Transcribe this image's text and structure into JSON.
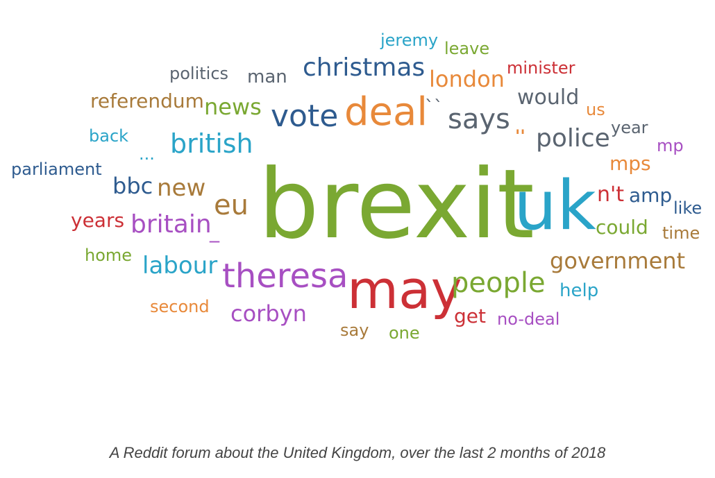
{
  "caption": "A Reddit forum about the United Kingdom, over the last 2 months of 2018",
  "word_cloud": {
    "words": [
      {
        "text": "brexit",
        "color": "#7aa832"
      },
      {
        "text": "uk",
        "color": "#2aa4c8"
      },
      {
        "text": "may",
        "color": "#cc3036"
      },
      {
        "text": "deal",
        "color": "#e8893a"
      },
      {
        "text": "theresa",
        "color": "#a74fc2"
      },
      {
        "text": "vote",
        "color": "#2e5b8f"
      },
      {
        "text": "people",
        "color": "#7aa832"
      },
      {
        "text": "christmas",
        "color": "#2e5b8f"
      },
      {
        "text": "says",
        "color": "#5a6470"
      },
      {
        "text": "british",
        "color": "#2aa4c8"
      },
      {
        "text": "police",
        "color": "#5a6470"
      },
      {
        "text": "eu",
        "color": "#a87a3a"
      },
      {
        "text": "government",
        "color": "#a87a3a"
      },
      {
        "text": "britain",
        "color": "#a74fc2"
      },
      {
        "text": "corbyn",
        "color": "#a74fc2"
      },
      {
        "text": "labour",
        "color": "#2aa4c8"
      },
      {
        "text": "london",
        "color": "#e8893a"
      },
      {
        "text": "new",
        "color": "#a87a3a"
      },
      {
        "text": "bbc",
        "color": "#2e5b8f"
      },
      {
        "text": "news",
        "color": "#7aa832"
      },
      {
        "text": "would",
        "color": "#5a6470"
      },
      {
        "text": "referendum",
        "color": "#a87a3a"
      },
      {
        "text": "n't",
        "color": "#cc3036"
      },
      {
        "text": "amp",
        "color": "#2e5b8f"
      },
      {
        "text": "could",
        "color": "#7aa832"
      },
      {
        "text": "mps",
        "color": "#e8893a"
      },
      {
        "text": "years",
        "color": "#cc3036"
      },
      {
        "text": "get",
        "color": "#cc3036"
      },
      {
        "text": "no-deal",
        "color": "#a74fc2"
      },
      {
        "text": "help",
        "color": "#2aa4c8"
      },
      {
        "text": "second",
        "color": "#e8893a"
      },
      {
        "text": "one",
        "color": "#7aa832"
      },
      {
        "text": "say",
        "color": "#a87a3a"
      },
      {
        "text": "home",
        "color": "#7aa832"
      },
      {
        "text": "parliament",
        "color": "#2e5b8f"
      },
      {
        "text": "back",
        "color": "#2aa4c8"
      },
      {
        "text": "politics",
        "color": "#5a6470"
      },
      {
        "text": "man",
        "color": "#5a6470"
      },
      {
        "text": "jeremy",
        "color": "#2aa4c8"
      },
      {
        "text": "leave",
        "color": "#7aa832"
      },
      {
        "text": "minister",
        "color": "#cc3036"
      },
      {
        "text": "us",
        "color": "#e8893a"
      },
      {
        "text": "year",
        "color": "#5a6470"
      },
      {
        "text": "mp",
        "color": "#a74fc2"
      },
      {
        "text": "like",
        "color": "#2e5b8f"
      },
      {
        "text": "time",
        "color": "#a87a3a"
      },
      {
        "text": "``",
        "color": "#5a6470"
      },
      {
        "text": "''",
        "color": "#e8893a"
      },
      {
        "text": "...",
        "color": "#2aa4c8"
      },
      {
        "text": "_",
        "color": "#a74fc2"
      }
    ]
  }
}
